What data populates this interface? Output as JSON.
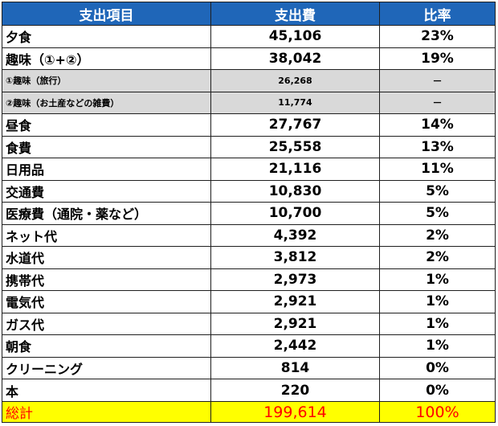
{
  "table": {
    "headers": {
      "item": "支出項目",
      "amount": "支出費",
      "ratio": "比率"
    },
    "rows": [
      {
        "item": "夕食",
        "amount": "45,106",
        "ratio": "23%",
        "sub": false
      },
      {
        "item": "趣味（①+②）",
        "amount": "38,042",
        "ratio": "19%",
        "sub": false
      },
      {
        "item": "①趣味（旅行）",
        "amount": "26,268",
        "ratio": "－",
        "sub": true
      },
      {
        "item": "②趣味（お土産などの雑費）",
        "amount": "11,774",
        "ratio": "－",
        "sub": true
      },
      {
        "item": "昼食",
        "amount": "27,767",
        "ratio": "14%",
        "sub": false
      },
      {
        "item": "食費",
        "amount": "25,558",
        "ratio": "13%",
        "sub": false
      },
      {
        "item": "日用品",
        "amount": "21,116",
        "ratio": "11%",
        "sub": false
      },
      {
        "item": "交通費",
        "amount": "10,830",
        "ratio": "5%",
        "sub": false
      },
      {
        "item": "医療費（通院・薬など）",
        "amount": "10,700",
        "ratio": "5%",
        "sub": false
      },
      {
        "item": "ネット代",
        "amount": "4,392",
        "ratio": "2%",
        "sub": false
      },
      {
        "item": "水道代",
        "amount": "3,812",
        "ratio": "2%",
        "sub": false
      },
      {
        "item": "携帯代",
        "amount": "2,973",
        "ratio": "1%",
        "sub": false
      },
      {
        "item": "電気代",
        "amount": "2,921",
        "ratio": "1%",
        "sub": false
      },
      {
        "item": "ガス代",
        "amount": "2,921",
        "ratio": "1%",
        "sub": false
      },
      {
        "item": "朝食",
        "amount": "2,442",
        "ratio": "1%",
        "sub": false
      },
      {
        "item": "クリーニング",
        "amount": "814",
        "ratio": "0%",
        "sub": false
      },
      {
        "item": "本",
        "amount": "220",
        "ratio": "0%",
        "sub": false
      }
    ],
    "total": {
      "item": "総計",
      "amount": "199,614",
      "ratio": "100%"
    }
  },
  "colors": {
    "header_bg": "#1f66b8",
    "header_text": "#ffffff",
    "sub_row_bg": "#d9d9d9",
    "total_bg": "#ffff00",
    "total_text": "#ff0000"
  }
}
